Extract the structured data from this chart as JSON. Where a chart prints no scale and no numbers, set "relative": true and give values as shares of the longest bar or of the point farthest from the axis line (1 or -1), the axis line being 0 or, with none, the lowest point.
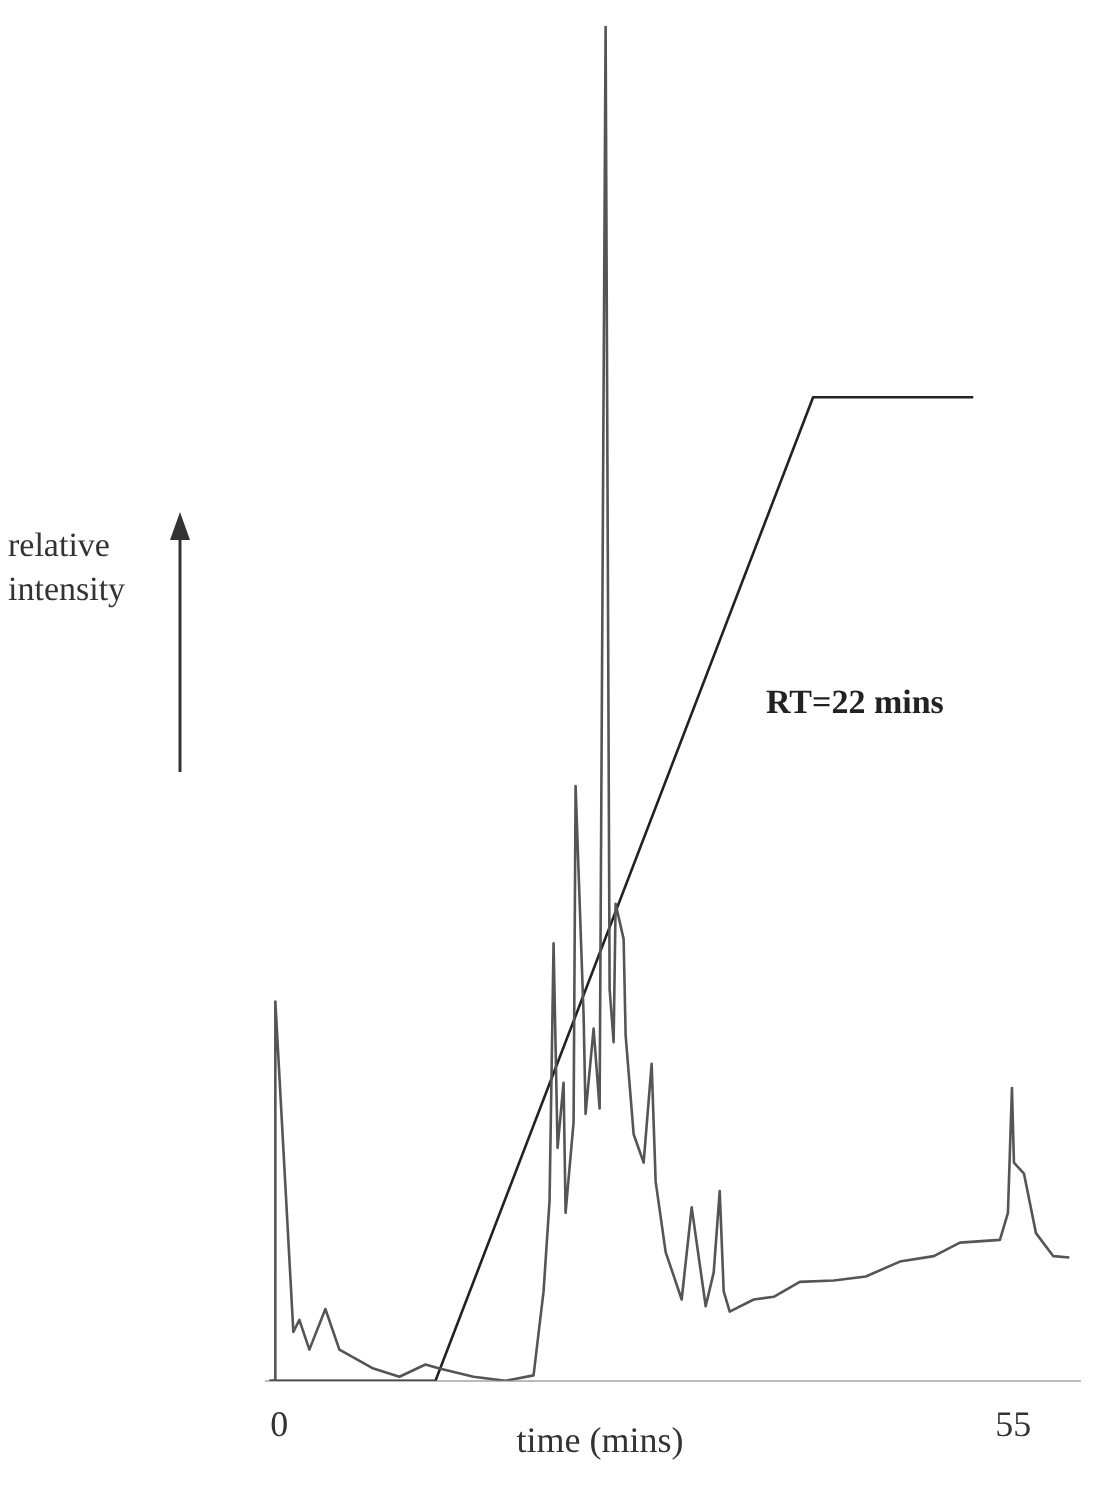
{
  "chart_data": {
    "type": "line",
    "relative": true,
    "xlabel": "time (mins)",
    "ylabel": "relative intensity",
    "annotations": [
      "RT=22 mins"
    ],
    "xlim": [
      -1,
      60
    ],
    "xticks": [
      0,
      55
    ],
    "grid": false,
    "legend": false,
    "marker": "none",
    "line_style": "solid",
    "series": [
      {
        "color": "#555555",
        "x": [
          -0.6,
          -0.4,
          -0.3,
          1.05,
          1.5,
          2.25,
          3.45,
          4.5,
          7.05,
          9.0,
          10.95,
          12.0,
          14.55,
          16.95,
          19.05,
          19.8,
          20.25,
          20.55,
          20.85,
          21.3,
          21.45,
          22.05,
          22.2,
          22.8,
          22.95,
          23.55,
          24.0,
          24.45,
          24.75,
          25.05,
          25.2,
          25.8,
          25.95,
          26.55,
          27.3,
          27.9,
          28.2,
          28.95,
          30.15,
          30.9,
          31.95,
          32.55,
          33.0,
          33.3,
          33.75,
          35.55,
          37.05,
          39.0,
          41.55,
          43.95,
          46.5,
          49.05,
          51.0,
          54.0,
          54.6,
          54.9,
          55.05,
          55.8,
          56.7,
          58.0,
          59.2
        ],
        "values": [
          0,
          0,
          0.28,
          0.036,
          0.045,
          0.023,
          0.053,
          0.023,
          0.009,
          0.003,
          0.012,
          0.009,
          0.003,
          0,
          0.004,
          0.066,
          0.133,
          0.323,
          0.172,
          0.22,
          0.124,
          0.191,
          0.439,
          0.27,
          0.197,
          0.26,
          0.201,
          1,
          0.289,
          0.25,
          0.352,
          0.326,
          0.255,
          0.182,
          0.161,
          0.234,
          0.147,
          0.095,
          0.06,
          0.128,
          0.055,
          0.08,
          0.14,
          0.066,
          0.051,
          0.06,
          0.062,
          0.073,
          0.074,
          0.077,
          0.088,
          0.092,
          0.102,
          0.104,
          0.124,
          0.216,
          0.161,
          0.153,
          0.109,
          0.092,
          0.091
        ]
      },
      {
        "type": "line",
        "color": "#222222",
        "x": [
          -0.75,
          11.7,
          40.0,
          52.0
        ],
        "values": [
          0,
          0,
          0.726,
          0.726
        ]
      }
    ]
  }
}
